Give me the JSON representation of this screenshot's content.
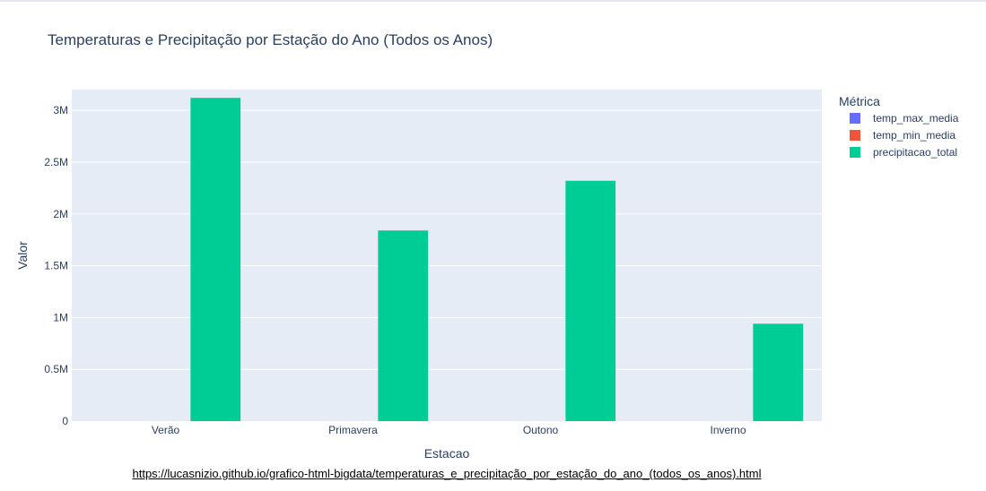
{
  "page": {
    "source_url": "https://lucasnizio.github.io/grafico-html-bigdata/temperaturas_e_precipitação_por_estação_do_ano_(todos_os_anos).html"
  },
  "chart_data": {
    "type": "bar",
    "title": "Temperaturas e Precipitação por Estação do Ano (Todos os Anos)",
    "xlabel": "Estacao",
    "ylabel": "Valor",
    "categories": [
      "Verão",
      "Primavera",
      "Outono",
      "Inverno"
    ],
    "ylim": [
      0,
      3200000
    ],
    "yticks": [
      0,
      500000,
      1000000,
      1500000,
      2000000,
      2500000,
      3000000
    ],
    "ytick_labels": [
      "0",
      "0.5M",
      "1M",
      "1.5M",
      "2M",
      "2.5M",
      "3M"
    ],
    "grid": true,
    "barmode": "group",
    "legend": {
      "title": "Métrica",
      "position": "right"
    },
    "series": [
      {
        "name": "temp_max_media",
        "color": "#636efa",
        "values": [
          29,
          26,
          25,
          23
        ]
      },
      {
        "name": "temp_min_media",
        "color": "#ef553b",
        "values": [
          20,
          17,
          16,
          13
        ]
      },
      {
        "name": "precipitacao_total",
        "color": "#00cc96",
        "values": [
          3120000,
          1840000,
          2320000,
          940000
        ]
      }
    ],
    "colors": {
      "plot_bg": "#e5ecf6",
      "grid": "#ffffff",
      "text": "#2a3f5f"
    }
  }
}
